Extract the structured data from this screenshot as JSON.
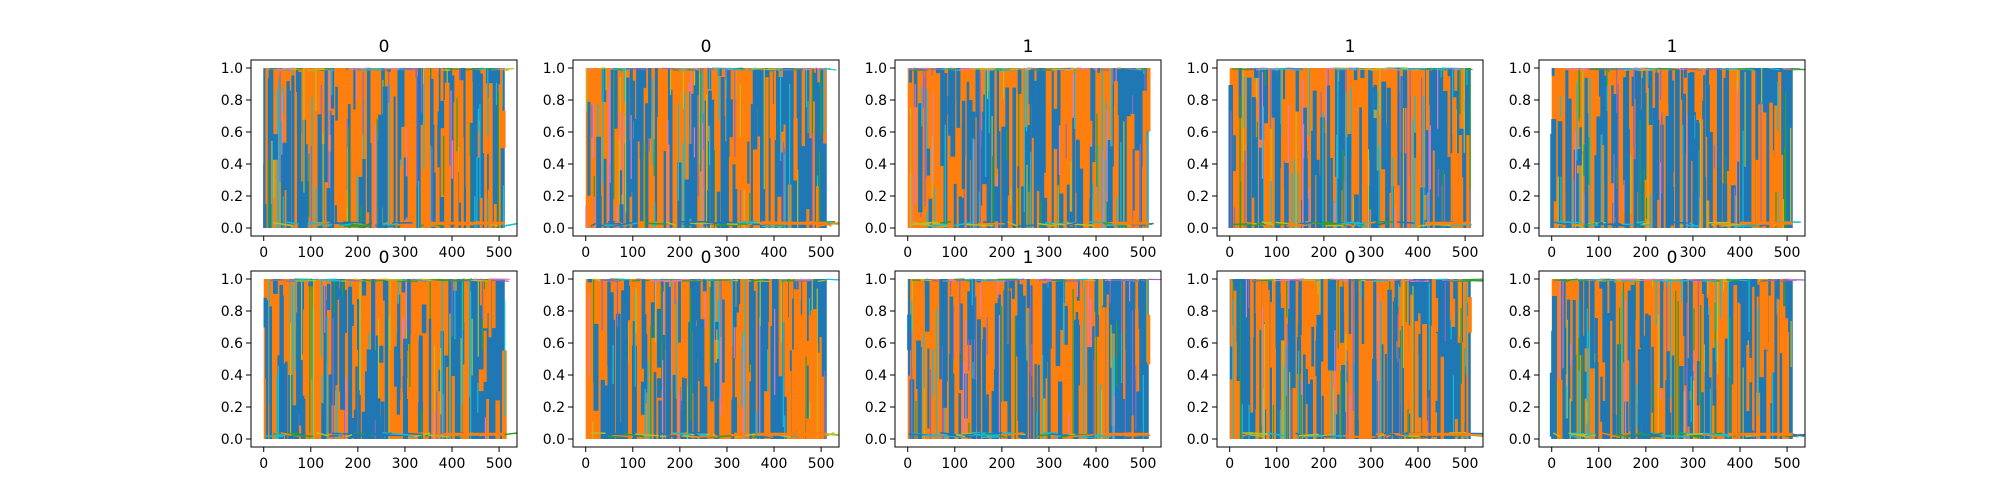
{
  "chart_data": [
    {
      "type": "line",
      "title": "0",
      "x_ticks": [
        "0",
        "100",
        "200",
        "300",
        "400",
        "500"
      ],
      "y_ticks": [
        "0.0",
        "0.2",
        "0.4",
        "0.6",
        "0.8",
        "1.0"
      ],
      "xlim": [
        -27,
        538
      ],
      "ylim": [
        -0.05,
        1.05
      ],
      "grid": false,
      "legend": "none",
      "dominant_series": [
        {
          "color": "#ff7f0e",
          "x_range": [
            0,
            345
          ]
        },
        {
          "color": "#1f77b4",
          "x_range": [
            345,
            512
          ]
        }
      ]
    },
    {
      "type": "line",
      "title": "0",
      "x_ticks": [
        "0",
        "100",
        "200",
        "300",
        "400",
        "500"
      ],
      "y_ticks": [
        "0.0",
        "0.2",
        "0.4",
        "0.6",
        "0.8",
        "1.0"
      ],
      "xlim": [
        -27,
        538
      ],
      "ylim": [
        -0.05,
        1.05
      ],
      "grid": false,
      "legend": "none",
      "dominant_series": [
        {
          "color": "#ff7f0e",
          "x_range": [
            0,
            370
          ]
        },
        {
          "color": "#1f77b4",
          "x_range": [
            370,
            512
          ]
        }
      ]
    },
    {
      "type": "line",
      "title": "1",
      "x_ticks": [
        "0",
        "100",
        "200",
        "300",
        "400",
        "500"
      ],
      "y_ticks": [
        "0.0",
        "0.2",
        "0.4",
        "0.6",
        "0.8",
        "1.0"
      ],
      "xlim": [
        -27,
        538
      ],
      "ylim": [
        -0.05,
        1.05
      ],
      "grid": false,
      "legend": "none",
      "dominant_series": [
        {
          "color": "#ff7f0e",
          "x_range": [
            0,
            150
          ]
        },
        {
          "color": "#1f77b4",
          "x_range": [
            150,
            185
          ]
        },
        {
          "color": "#ff7f0e",
          "x_range": [
            185,
            435
          ]
        },
        {
          "color": "#1f77b4",
          "x_range": [
            435,
            512
          ]
        }
      ]
    },
    {
      "type": "line",
      "title": "1",
      "x_ticks": [
        "0",
        "100",
        "200",
        "300",
        "400",
        "500"
      ],
      "y_ticks": [
        "0.0",
        "0.2",
        "0.4",
        "0.6",
        "0.8",
        "1.0"
      ],
      "xlim": [
        -27,
        538
      ],
      "ylim": [
        -0.05,
        1.05
      ],
      "grid": false,
      "legend": "none",
      "dominant_series": [
        {
          "color": "#ff7f0e",
          "x_range": [
            0,
            415
          ]
        },
        {
          "color": "#1f77b4",
          "x_range": [
            415,
            512
          ]
        }
      ]
    },
    {
      "type": "line",
      "title": "1",
      "x_ticks": [
        "0",
        "100",
        "200",
        "300",
        "400",
        "500"
      ],
      "y_ticks": [
        "0.0",
        "0.2",
        "0.4",
        "0.6",
        "0.8",
        "1.0"
      ],
      "xlim": [
        -27,
        538
      ],
      "ylim": [
        -0.05,
        1.05
      ],
      "grid": false,
      "legend": "none",
      "dominant_series": [
        {
          "color": "#ff7f0e",
          "x_range": [
            0,
            400
          ]
        },
        {
          "color": "#1f77b4",
          "x_range": [
            400,
            512
          ]
        }
      ]
    },
    {
      "type": "line",
      "title": "0",
      "x_ticks": [
        "0",
        "100",
        "200",
        "300",
        "400",
        "500"
      ],
      "y_ticks": [
        "0.0",
        "0.2",
        "0.4",
        "0.6",
        "0.8",
        "1.0"
      ],
      "xlim": [
        -27,
        538
      ],
      "ylim": [
        -0.05,
        1.05
      ],
      "grid": false,
      "legend": "none",
      "dominant_series": [
        {
          "color": "#ff7f0e",
          "x_range": [
            0,
            385
          ]
        },
        {
          "color": "#1f77b4",
          "x_range": [
            385,
            512
          ]
        }
      ]
    },
    {
      "type": "line",
      "title": "0",
      "x_ticks": [
        "0",
        "100",
        "200",
        "300",
        "400",
        "500"
      ],
      "y_ticks": [
        "0.0",
        "0.2",
        "0.4",
        "0.6",
        "0.8",
        "1.0"
      ],
      "xlim": [
        -27,
        538
      ],
      "ylim": [
        -0.05,
        1.05
      ],
      "grid": false,
      "legend": "none",
      "dominant_series": [
        {
          "color": "#ff7f0e",
          "x_range": [
            0,
            365
          ]
        },
        {
          "color": "#1f77b4",
          "x_range": [
            365,
            512
          ]
        }
      ]
    },
    {
      "type": "line",
      "title": "1",
      "x_ticks": [
        "0",
        "100",
        "200",
        "300",
        "400",
        "500"
      ],
      "y_ticks": [
        "0.0",
        "0.2",
        "0.4",
        "0.6",
        "0.8",
        "1.0"
      ],
      "xlim": [
        -27,
        538
      ],
      "ylim": [
        -0.05,
        1.05
      ],
      "grid": false,
      "legend": "none",
      "dominant_series": [
        {
          "color": "#ff7f0e",
          "x_range": [
            0,
            420
          ]
        },
        {
          "color": "#1f77b4",
          "x_range": [
            420,
            512
          ]
        }
      ]
    },
    {
      "type": "line",
      "title": "0",
      "x_ticks": [
        "0",
        "100",
        "200",
        "300",
        "400",
        "500"
      ],
      "y_ticks": [
        "0.0",
        "0.2",
        "0.4",
        "0.6",
        "0.8",
        "1.0"
      ],
      "xlim": [
        -27,
        538
      ],
      "ylim": [
        -0.05,
        1.05
      ],
      "grid": false,
      "legend": "none",
      "dominant_series": [
        {
          "color": "#1f77b4",
          "x_range": [
            0,
            90
          ]
        },
        {
          "color": "#ff7f0e",
          "x_range": [
            90,
            380
          ]
        },
        {
          "color": "#1f77b4",
          "x_range": [
            380,
            512
          ]
        }
      ]
    },
    {
      "type": "line",
      "title": "0",
      "x_ticks": [
        "0",
        "100",
        "200",
        "300",
        "400",
        "500"
      ],
      "y_ticks": [
        "0.0",
        "0.2",
        "0.4",
        "0.6",
        "0.8",
        "1.0"
      ],
      "xlim": [
        -27,
        538
      ],
      "ylim": [
        -0.05,
        1.05
      ],
      "grid": false,
      "legend": "none",
      "dominant_series": [
        {
          "color": "#ff7f0e",
          "x_range": [
            0,
            375
          ]
        },
        {
          "color": "#1f77b4",
          "x_range": [
            375,
            512
          ]
        }
      ]
    }
  ],
  "palette": [
    "#1f77b4",
    "#ff7f0e",
    "#2ca02c",
    "#d62728",
    "#9467bd",
    "#8c564b",
    "#e377c2",
    "#7f7f7f",
    "#bcbd22",
    "#17becf"
  ]
}
